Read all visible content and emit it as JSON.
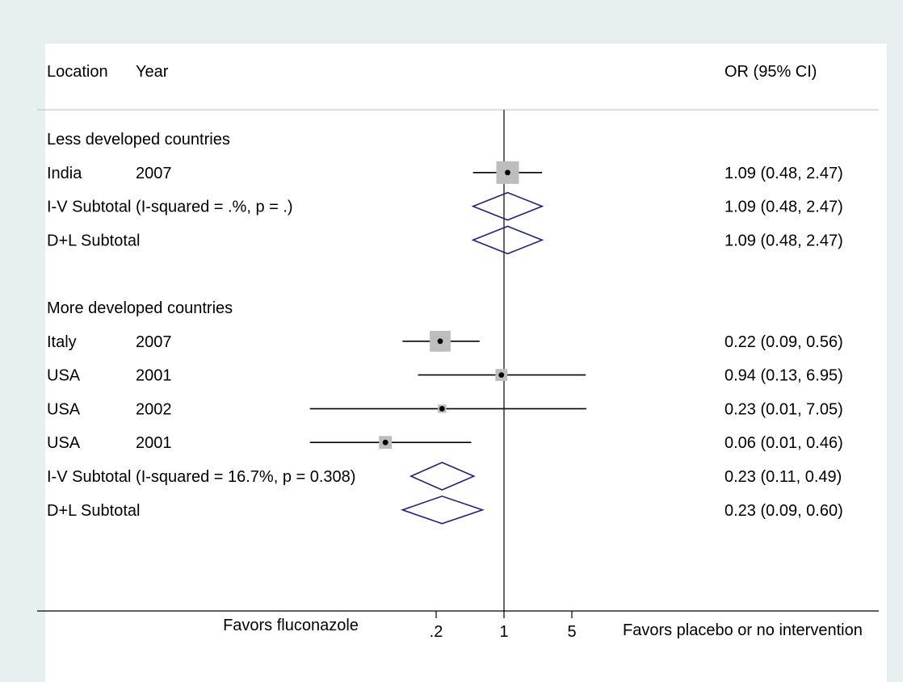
{
  "chart_data": {
    "type": "forest",
    "header": {
      "location": "Location",
      "year": "Year",
      "estimate": "OR (95% CI)"
    },
    "x_axis": {
      "scale": "log",
      "ticks": [
        0.2,
        1,
        5
      ],
      "tick_labels": [
        ".2",
        "1",
        "5"
      ],
      "left_label": "Favors fluconazole",
      "right_label": "Favors placebo or no intervention",
      "range": [
        0.04,
        24.2
      ]
    },
    "rows": [
      {
        "kind": "group",
        "label": "Less developed countries"
      },
      {
        "kind": "study",
        "location": "India",
        "year": "2007",
        "or": 1.09,
        "lo": 0.48,
        "hi": 2.47,
        "weight": 1.0,
        "ci_text": "1.09 (0.48, 2.47)"
      },
      {
        "kind": "subtotal",
        "label": "I-V Subtotal  (I-squared = .%, p = .)",
        "or": 1.09,
        "lo": 0.48,
        "hi": 2.47,
        "ci_text": "1.09 (0.48, 2.47)"
      },
      {
        "kind": "subtotal",
        "label": "D+L Subtotal",
        "or": 1.09,
        "lo": 0.48,
        "hi": 2.47,
        "ci_text": "1.09 (0.48, 2.47)"
      },
      {
        "kind": "blank"
      },
      {
        "kind": "group",
        "label": "More developed countries"
      },
      {
        "kind": "study",
        "location": "Italy",
        "year": "2007",
        "or": 0.22,
        "lo": 0.09,
        "hi": 0.56,
        "weight": 0.9,
        "ci_text": "0.22 (0.09, 0.56)"
      },
      {
        "kind": "study",
        "location": "USA",
        "year": "2001",
        "or": 0.94,
        "lo": 0.13,
        "hi": 6.95,
        "weight": 0.4,
        "ci_text": "0.94 (0.13, 6.95)"
      },
      {
        "kind": "study",
        "location": "USA",
        "year": "2002",
        "or": 0.23,
        "lo": 0.01,
        "hi": 7.05,
        "weight": 0.2,
        "ci_text": "0.23 (0.01, 7.05)"
      },
      {
        "kind": "study",
        "location": "USA",
        "year": "2001",
        "or": 0.06,
        "lo": 0.01,
        "hi": 0.46,
        "weight": 0.45,
        "ci_text": "0.06 (0.01, 0.46)"
      },
      {
        "kind": "subtotal",
        "label": "I-V Subtotal  (I-squared = 16.7%, p = 0.308)",
        "or": 0.23,
        "lo": 0.11,
        "hi": 0.49,
        "ci_text": "0.23 (0.11, 0.49)"
      },
      {
        "kind": "subtotal",
        "label": "D+L Subtotal",
        "or": 0.23,
        "lo": 0.09,
        "hi": 0.6,
        "ci_text": "0.23 (0.09, 0.60)"
      }
    ],
    "colors": {
      "diamond": "#1a237e",
      "box": "#bdbdbd",
      "line": "#000000"
    }
  }
}
